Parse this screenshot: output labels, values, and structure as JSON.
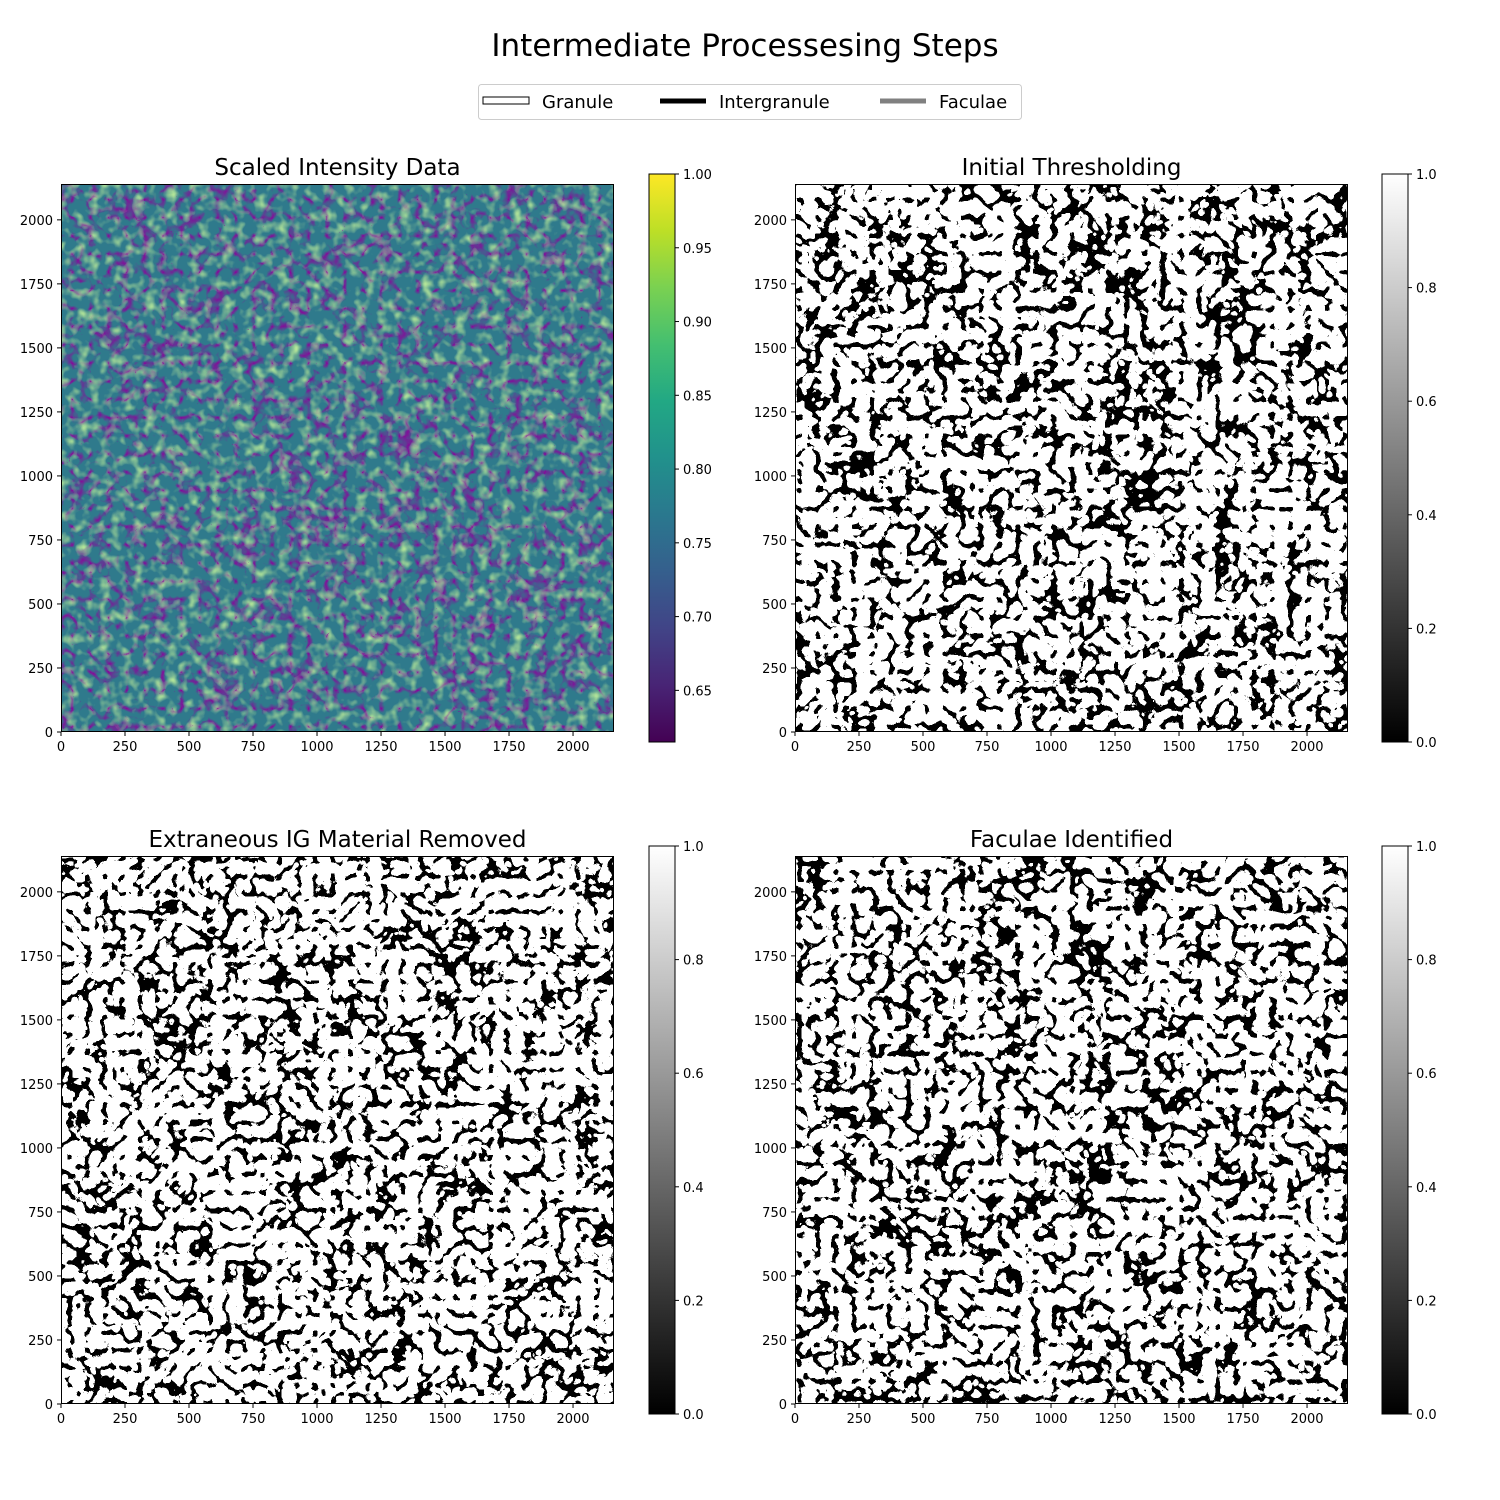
{
  "chart_data": {
    "type": "heatmap",
    "title": "Intermediate Processesing Steps",
    "legend": {
      "placement": "top-center",
      "entries": [
        {
          "label": "Granule",
          "color": "#ffffff",
          "edge": "#000000"
        },
        {
          "label": "Intergranule",
          "color": "#000000"
        },
        {
          "label": "Faculae",
          "color": "#808080"
        }
      ]
    },
    "panels": [
      {
        "title": "Scaled Intensity Data",
        "kind": "intensity",
        "colormap": "viridis",
        "xlim": [
          0,
          2160
        ],
        "ylim": [
          0,
          2140
        ],
        "xticks": [
          "0",
          "250",
          "500",
          "750",
          "1000",
          "1250",
          "1500",
          "1750",
          "2000"
        ],
        "yticks": [
          "0",
          "250",
          "500",
          "750",
          "1000",
          "1250",
          "1500",
          "1750",
          "2000"
        ],
        "colorbar": {
          "range": [
            0.615,
            1.0
          ],
          "ticks": [
            "0.65",
            "0.70",
            "0.75",
            "0.80",
            "0.85",
            "0.90",
            "0.95",
            "1.00"
          ]
        }
      },
      {
        "title": "Initial Thresholding",
        "kind": "binary",
        "colormap": "gray",
        "xlim": [
          0,
          2160
        ],
        "ylim": [
          0,
          2140
        ],
        "xticks": [
          "0",
          "250",
          "500",
          "750",
          "1000",
          "1250",
          "1500",
          "1750",
          "2000"
        ],
        "yticks": [
          "0",
          "250",
          "500",
          "750",
          "1000",
          "1250",
          "1500",
          "1750",
          "2000"
        ],
        "colorbar": {
          "range": [
            0.0,
            1.0
          ],
          "ticks": [
            "0.0",
            "0.2",
            "0.4",
            "0.6",
            "0.8",
            "1.0"
          ]
        }
      },
      {
        "title": "Extraneous IG Material Removed",
        "kind": "binary",
        "colormap": "gray",
        "xlim": [
          0,
          2160
        ],
        "ylim": [
          0,
          2140
        ],
        "xticks": [
          "0",
          "250",
          "500",
          "750",
          "1000",
          "1250",
          "1500",
          "1750",
          "2000"
        ],
        "yticks": [
          "0",
          "250",
          "500",
          "750",
          "1000",
          "1250",
          "1500",
          "1750",
          "2000"
        ],
        "colorbar": {
          "range": [
            0.0,
            1.0
          ],
          "ticks": [
            "0.0",
            "0.2",
            "0.4",
            "0.6",
            "0.8",
            "1.0"
          ]
        }
      },
      {
        "title": "Faculae Identified",
        "kind": "binary",
        "colormap": "gray",
        "xlim": [
          0,
          2160
        ],
        "ylim": [
          0,
          2140
        ],
        "xticks": [
          "0",
          "250",
          "500",
          "750",
          "1000",
          "1250",
          "1500",
          "1750",
          "2000"
        ],
        "yticks": [
          "0",
          "250",
          "500",
          "750",
          "1000",
          "1250",
          "1500",
          "1750",
          "2000"
        ],
        "colorbar": {
          "range": [
            0.0,
            1.0
          ],
          "ticks": [
            "0.0",
            "0.2",
            "0.4",
            "0.6",
            "0.8",
            "1.0"
          ]
        }
      }
    ]
  }
}
